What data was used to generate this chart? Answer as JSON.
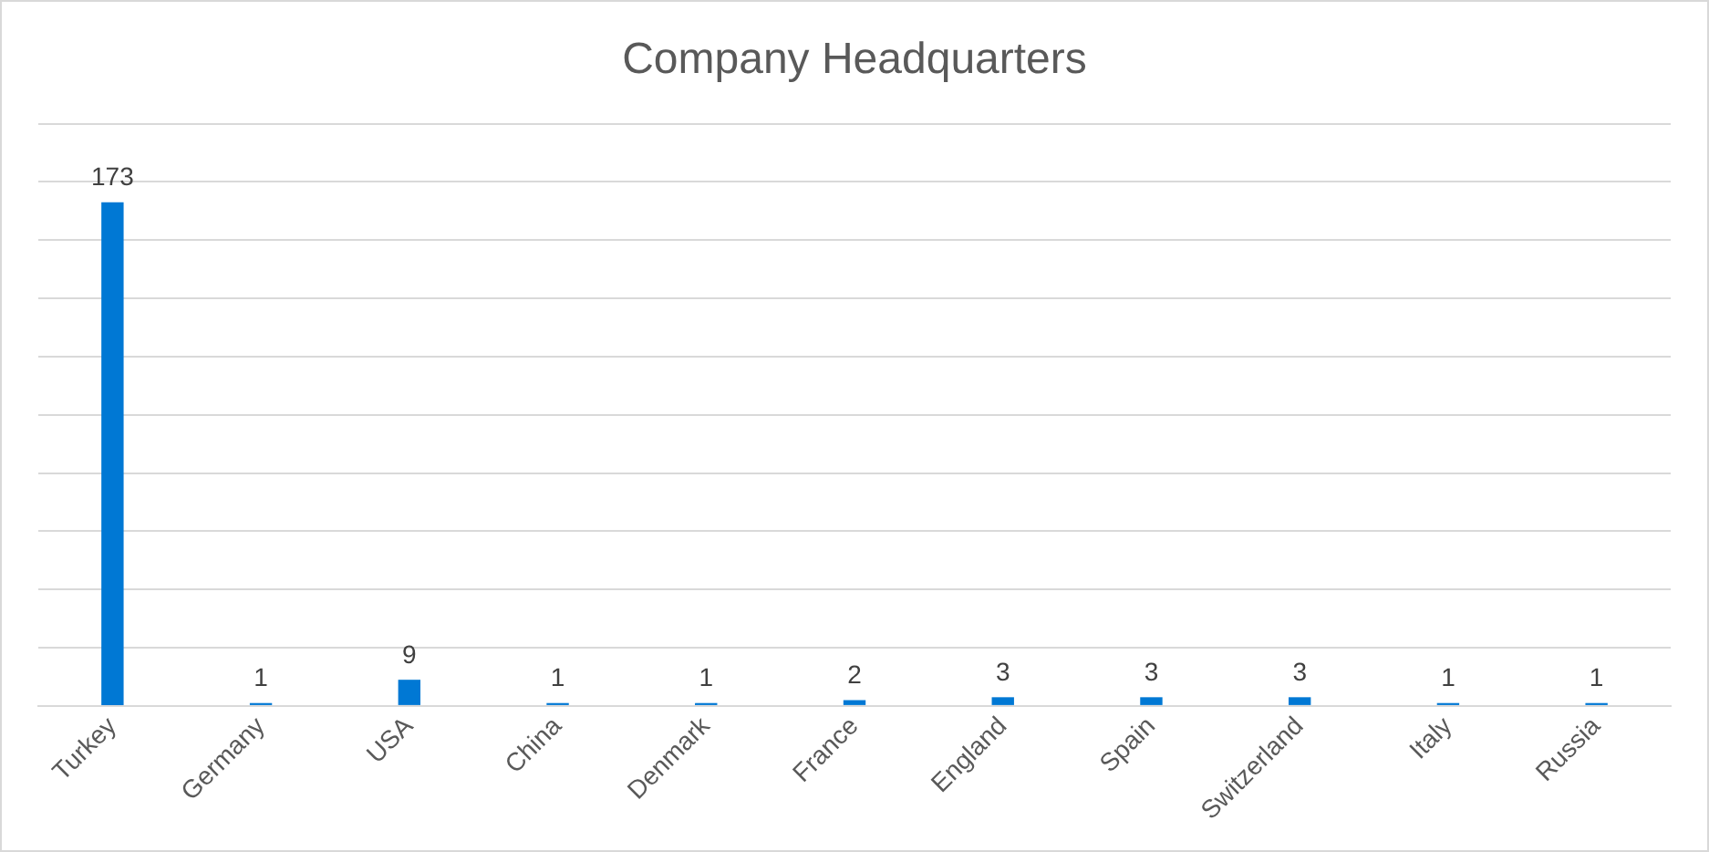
{
  "chart_data": {
    "type": "bar",
    "title": "Company Headquarters",
    "categories": [
      "Turkey",
      "Germany",
      "USA",
      "China",
      "Denmark",
      "France",
      "England",
      "Spain",
      "Switzerland",
      "Italy",
      "Russia"
    ],
    "values": [
      173,
      1,
      9,
      1,
      1,
      2,
      3,
      3,
      3,
      1,
      1
    ],
    "color": "#0078d4",
    "ylim": [
      0,
      200
    ],
    "yticks": [
      {
        "value": 0,
        "label": null
      },
      {
        "value": 20,
        "label": null
      },
      {
        "value": 40,
        "label": null
      },
      {
        "value": 60,
        "label": null
      },
      {
        "value": 80,
        "label": null
      },
      {
        "value": 100,
        "label": null
      },
      {
        "value": 120,
        "label": null
      },
      {
        "value": 140,
        "label": null
      },
      {
        "value": 160,
        "label": null
      },
      {
        "value": 180,
        "label": null
      },
      {
        "value": 200,
        "label": null
      }
    ],
    "grid": "y",
    "tick_labels": "x",
    "data_labels": true,
    "legend": false
  }
}
